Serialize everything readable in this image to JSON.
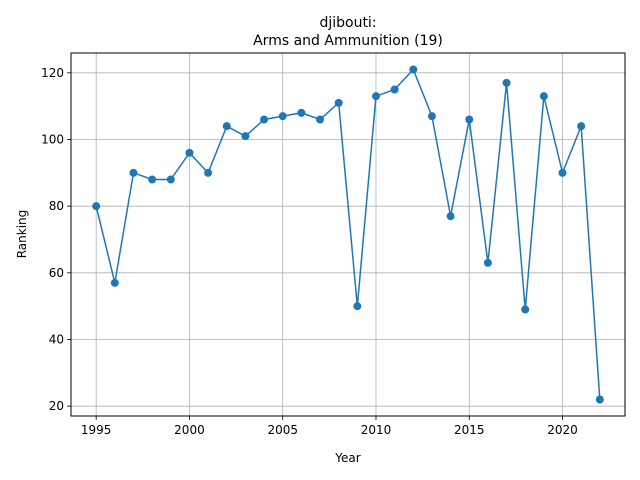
{
  "chart_data": {
    "type": "line",
    "title_line1": "djibouti:",
    "title_line2": "Arms and Ammunition (19)",
    "xlabel": "Year",
    "ylabel": "Ranking",
    "xlim": [
      1993.65,
      2023.35
    ],
    "ylim": [
      17.05,
      125.95
    ],
    "xticks": [
      1995,
      2000,
      2005,
      2010,
      2015,
      2020
    ],
    "yticks": [
      20,
      40,
      60,
      80,
      100,
      120
    ],
    "grid": true,
    "line_color": "#1f77b4",
    "x": [
      1995,
      1996,
      1997,
      1998,
      1999,
      2000,
      2001,
      2002,
      2003,
      2004,
      2005,
      2006,
      2007,
      2008,
      2009,
      2010,
      2011,
      2012,
      2013,
      2014,
      2015,
      2016,
      2017,
      2018,
      2019,
      2020,
      2021,
      2022
    ],
    "values": [
      80,
      57,
      90,
      88,
      88,
      96,
      90,
      104,
      101,
      106,
      107,
      108,
      106,
      111,
      50,
      113,
      115,
      121,
      107,
      77,
      106,
      63,
      117,
      49,
      113,
      90,
      104,
      22
    ]
  }
}
